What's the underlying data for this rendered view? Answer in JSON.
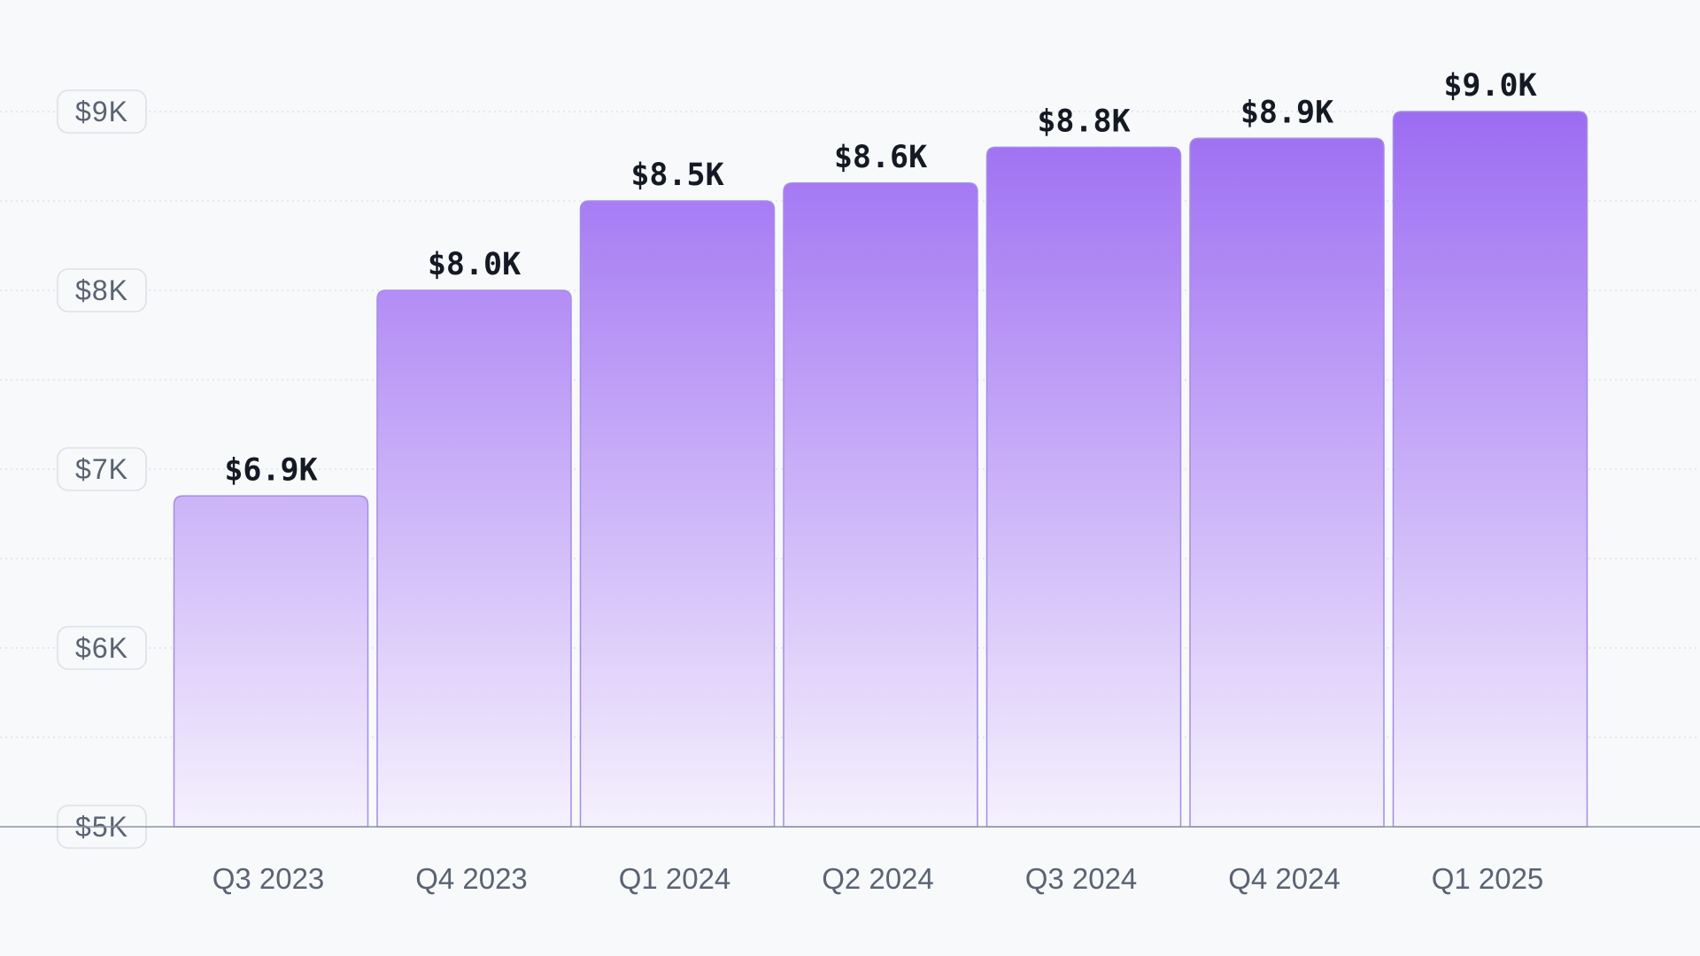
{
  "chart_data": {
    "type": "bar",
    "categories": [
      "Q3 2023",
      "Q4 2023",
      "Q1 2024",
      "Q2 2024",
      "Q3 2024",
      "Q4 2024",
      "Q1 2025"
    ],
    "series": [
      {
        "values": [
          6.85,
          8.0,
          8.5,
          8.6,
          8.8,
          8.85,
          9.0
        ]
      }
    ],
    "data_labels": [
      "$6.9K",
      "$8.0K",
      "$8.5K",
      "$8.6K",
      "$8.8K",
      "$8.9K",
      "$9.0K"
    ],
    "y_ticks": [
      {
        "value": 5,
        "label": "$5K"
      },
      {
        "value": 6,
        "label": "$6K"
      },
      {
        "value": 7,
        "label": "$7K"
      },
      {
        "value": 8,
        "label": "$8K"
      },
      {
        "value": 9,
        "label": "$9K"
      }
    ],
    "ylim": [
      5,
      9
    ],
    "y_unit": "thousands of dollars",
    "grid": true,
    "legend": "none",
    "colors": {
      "bar_top": "#9c6cf2",
      "bar_bottom": "#f5f1fd",
      "bar_outline": "#a58ce6",
      "label_text": "#151923",
      "axis_text": "#5a6372",
      "background": "#f7f9fb"
    }
  }
}
